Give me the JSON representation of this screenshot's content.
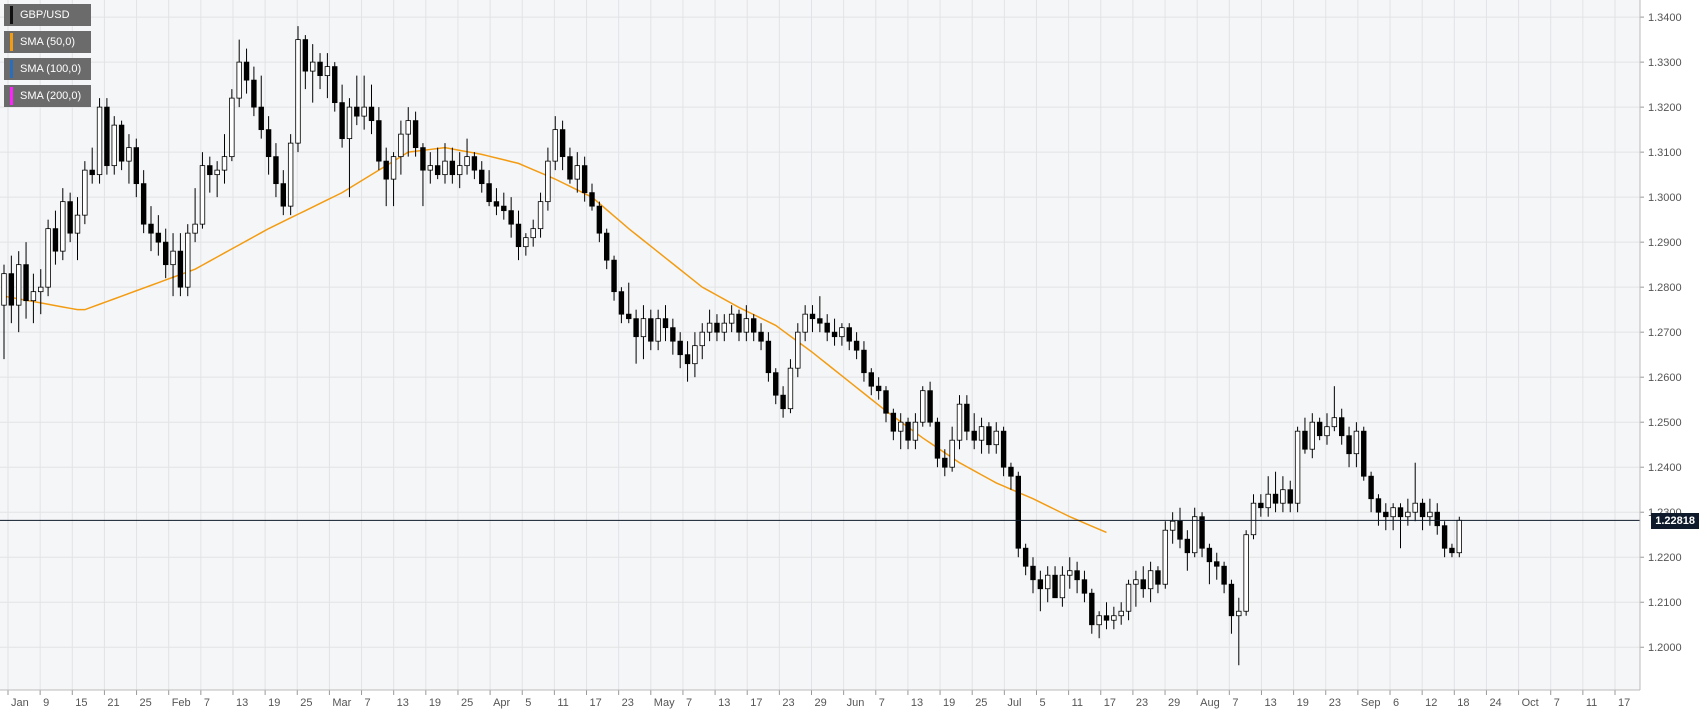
{
  "colors": {
    "background": "#f5f6f7",
    "grid": "#e1e3e6",
    "axis_text": "#555555",
    "candle_up_fill": "#ffffff",
    "candle_down_fill": "#000000",
    "candle_outline": "#000000",
    "price_line": "#0e1a2b"
  },
  "legend": [
    {
      "label": "GBP/USD",
      "color": "#111111"
    },
    {
      "label": "SMA (50,0)",
      "color": "#f39c12"
    },
    {
      "label": "SMA (100,0)",
      "color": "#2a6ebb"
    },
    {
      "label": "SMA (200,0)",
      "color": "#ff22ff"
    }
  ],
  "current_price_label": "1.22818",
  "chart_data": {
    "type": "candlestick",
    "title": "",
    "xlabel": "",
    "ylabel": "",
    "ylim": [
      1.1905,
      1.3438
    ],
    "y_ticks": [
      "1.2000",
      "1.2100",
      "1.2200",
      "1.2300",
      "1.2400",
      "1.2500",
      "1.2600",
      "1.2700",
      "1.2800",
      "1.2900",
      "1.3000",
      "1.3100",
      "1.3200",
      "1.3300",
      "1.3400"
    ],
    "x_tick_labels": [
      "Jan",
      "9",
      "15",
      "21",
      "25",
      "Feb",
      "7",
      "13",
      "19",
      "25",
      "Mar",
      "7",
      "13",
      "19",
      "25",
      "Apr",
      "5",
      "11",
      "17",
      "23",
      "May",
      "7",
      "13",
      "17",
      "23",
      "29",
      "Jun",
      "7",
      "13",
      "19",
      "25",
      "Jul",
      "5",
      "11",
      "17",
      "23",
      "29",
      "Aug",
      "7",
      "13",
      "19",
      "23",
      "Sep",
      "6",
      "12",
      "18",
      "24",
      "Oct",
      "7",
      "11",
      "17"
    ],
    "current_price": 1.22818,
    "grid": true,
    "legend_position": "top-left",
    "candles": [
      [
        1.276,
        1.285,
        1.264,
        1.283
      ],
      [
        1.283,
        1.287,
        1.272,
        1.276
      ],
      [
        1.276,
        1.288,
        1.27,
        1.285
      ],
      [
        1.285,
        1.29,
        1.273,
        1.277
      ],
      [
        1.277,
        1.283,
        1.272,
        1.279
      ],
      [
        1.279,
        1.284,
        1.274,
        1.28
      ],
      [
        1.28,
        1.295,
        1.278,
        1.293
      ],
      [
        1.293,
        1.297,
        1.285,
        1.288
      ],
      [
        1.288,
        1.302,
        1.286,
        1.299
      ],
      [
        1.299,
        1.301,
        1.29,
        1.292
      ],
      [
        1.292,
        1.3,
        1.286,
        1.296
      ],
      [
        1.296,
        1.308,
        1.294,
        1.306
      ],
      [
        1.306,
        1.311,
        1.303,
        1.305
      ],
      [
        1.305,
        1.322,
        1.303,
        1.32
      ],
      [
        1.32,
        1.322,
        1.305,
        1.307
      ],
      [
        1.307,
        1.318,
        1.305,
        1.316
      ],
      [
        1.316,
        1.317,
        1.306,
        1.308
      ],
      [
        1.308,
        1.314,
        1.303,
        1.311
      ],
      [
        1.311,
        1.313,
        1.3,
        1.303
      ],
      [
        1.303,
        1.306,
        1.292,
        1.294
      ],
      [
        1.294,
        1.298,
        1.288,
        1.292
      ],
      [
        1.292,
        1.296,
        1.287,
        1.29
      ],
      [
        1.29,
        1.293,
        1.282,
        1.285
      ],
      [
        1.285,
        1.292,
        1.278,
        1.288
      ],
      [
        1.288,
        1.292,
        1.278,
        1.28
      ],
      [
        1.28,
        1.294,
        1.278,
        1.292
      ],
      [
        1.292,
        1.302,
        1.29,
        1.294
      ],
      [
        1.294,
        1.31,
        1.293,
        1.307
      ],
      [
        1.307,
        1.309,
        1.301,
        1.305
      ],
      [
        1.305,
        1.308,
        1.3,
        1.306
      ],
      [
        1.306,
        1.314,
        1.303,
        1.309
      ],
      [
        1.309,
        1.324,
        1.308,
        1.322
      ],
      [
        1.322,
        1.335,
        1.32,
        1.33
      ],
      [
        1.33,
        1.333,
        1.323,
        1.326
      ],
      [
        1.326,
        1.329,
        1.318,
        1.32
      ],
      [
        1.32,
        1.327,
        1.313,
        1.315
      ],
      [
        1.315,
        1.318,
        1.305,
        1.309
      ],
      [
        1.309,
        1.312,
        1.3,
        1.303
      ],
      [
        1.303,
        1.306,
        1.296,
        1.298
      ],
      [
        1.298,
        1.314,
        1.296,
        1.312
      ],
      [
        1.312,
        1.338,
        1.31,
        1.335
      ],
      [
        1.335,
        1.336,
        1.324,
        1.328
      ],
      [
        1.328,
        1.334,
        1.321,
        1.33
      ],
      [
        1.33,
        1.332,
        1.324,
        1.327
      ],
      [
        1.327,
        1.332,
        1.322,
        1.329
      ],
      [
        1.329,
        1.33,
        1.319,
        1.321
      ],
      [
        1.321,
        1.325,
        1.311,
        1.313
      ],
      [
        1.313,
        1.322,
        1.3,
        1.32
      ],
      [
        1.32,
        1.327,
        1.316,
        1.318
      ],
      [
        1.318,
        1.327,
        1.315,
        1.32
      ],
      [
        1.32,
        1.325,
        1.314,
        1.317
      ],
      [
        1.317,
        1.32,
        1.306,
        1.308
      ],
      [
        1.308,
        1.311,
        1.298,
        1.304
      ],
      [
        1.304,
        1.31,
        1.298,
        1.309
      ],
      [
        1.309,
        1.317,
        1.305,
        1.314
      ],
      [
        1.314,
        1.32,
        1.309,
        1.317
      ],
      [
        1.317,
        1.319,
        1.309,
        1.311
      ],
      [
        1.311,
        1.312,
        1.298,
        1.306
      ],
      [
        1.306,
        1.31,
        1.303,
        1.307
      ],
      [
        1.307,
        1.311,
        1.304,
        1.305
      ],
      [
        1.305,
        1.312,
        1.303,
        1.308
      ],
      [
        1.308,
        1.311,
        1.303,
        1.305
      ],
      [
        1.305,
        1.31,
        1.302,
        1.307
      ],
      [
        1.307,
        1.313,
        1.305,
        1.309
      ],
      [
        1.309,
        1.31,
        1.304,
        1.306
      ],
      [
        1.306,
        1.308,
        1.301,
        1.303
      ],
      [
        1.303,
        1.306,
        1.298,
        1.299
      ],
      [
        1.299,
        1.302,
        1.296,
        1.298
      ],
      [
        1.298,
        1.301,
        1.295,
        1.297
      ],
      [
        1.297,
        1.3,
        1.291,
        1.294
      ],
      [
        1.294,
        1.297,
        1.286,
        1.289
      ],
      [
        1.289,
        1.292,
        1.287,
        1.291
      ],
      [
        1.291,
        1.295,
        1.289,
        1.293
      ],
      [
        1.293,
        1.301,
        1.291,
        1.299
      ],
      [
        1.299,
        1.311,
        1.297,
        1.308
      ],
      [
        1.308,
        1.318,
        1.306,
        1.315
      ],
      [
        1.315,
        1.317,
        1.306,
        1.309
      ],
      [
        1.309,
        1.311,
        1.303,
        1.304
      ],
      [
        1.304,
        1.31,
        1.301,
        1.307
      ],
      [
        1.307,
        1.309,
        1.299,
        1.301
      ],
      [
        1.301,
        1.303,
        1.297,
        1.298
      ],
      [
        1.298,
        1.299,
        1.29,
        1.292
      ],
      [
        1.292,
        1.293,
        1.284,
        1.286
      ],
      [
        1.286,
        1.287,
        1.277,
        1.279
      ],
      [
        1.279,
        1.28,
        1.272,
        1.274
      ],
      [
        1.274,
        1.281,
        1.272,
        1.273
      ],
      [
        1.273,
        1.275,
        1.263,
        1.269
      ],
      [
        1.269,
        1.276,
        1.264,
        1.273
      ],
      [
        1.273,
        1.275,
        1.266,
        1.268
      ],
      [
        1.268,
        1.275,
        1.266,
        1.273
      ],
      [
        1.273,
        1.276,
        1.268,
        1.271
      ],
      [
        1.271,
        1.273,
        1.265,
        1.268
      ],
      [
        1.268,
        1.27,
        1.262,
        1.265
      ],
      [
        1.265,
        1.268,
        1.259,
        1.263
      ],
      [
        1.263,
        1.27,
        1.26,
        1.267
      ],
      [
        1.267,
        1.272,
        1.264,
        1.27
      ],
      [
        1.27,
        1.275,
        1.268,
        1.272
      ],
      [
        1.272,
        1.274,
        1.268,
        1.27
      ],
      [
        1.27,
        1.274,
        1.268,
        1.272
      ],
      [
        1.272,
        1.276,
        1.27,
        1.274
      ],
      [
        1.274,
        1.275,
        1.268,
        1.27
      ],
      [
        1.27,
        1.276,
        1.268,
        1.273
      ],
      [
        1.273,
        1.274,
        1.268,
        1.27
      ],
      [
        1.27,
        1.272,
        1.266,
        1.268
      ],
      [
        1.268,
        1.27,
        1.259,
        1.261
      ],
      [
        1.261,
        1.262,
        1.254,
        1.256
      ],
      [
        1.256,
        1.258,
        1.251,
        1.253
      ],
      [
        1.253,
        1.264,
        1.252,
        1.262
      ],
      [
        1.262,
        1.272,
        1.26,
        1.27
      ],
      [
        1.27,
        1.276,
        1.268,
        1.274
      ],
      [
        1.274,
        1.276,
        1.27,
        1.273
      ],
      [
        1.273,
        1.278,
        1.27,
        1.272
      ],
      [
        1.272,
        1.274,
        1.268,
        1.27
      ],
      [
        1.27,
        1.273,
        1.267,
        1.269
      ],
      [
        1.269,
        1.272,
        1.267,
        1.271
      ],
      [
        1.271,
        1.272,
        1.266,
        1.268
      ],
      [
        1.268,
        1.27,
        1.264,
        1.266
      ],
      [
        1.266,
        1.268,
        1.259,
        1.261
      ],
      [
        1.261,
        1.262,
        1.256,
        1.258
      ],
      [
        1.258,
        1.26,
        1.255,
        1.257
      ],
      [
        1.257,
        1.258,
        1.25,
        1.252
      ],
      [
        1.252,
        1.253,
        1.246,
        1.248
      ],
      [
        1.248,
        1.252,
        1.244,
        1.25
      ],
      [
        1.25,
        1.251,
        1.244,
        1.246
      ],
      [
        1.246,
        1.252,
        1.244,
        1.25
      ],
      [
        1.25,
        1.258,
        1.249,
        1.257
      ],
      [
        1.257,
        1.259,
        1.249,
        1.25
      ],
      [
        1.25,
        1.251,
        1.24,
        1.242
      ],
      [
        1.242,
        1.244,
        1.238,
        1.24
      ],
      [
        1.24,
        1.249,
        1.239,
        1.246
      ],
      [
        1.246,
        1.256,
        1.244,
        1.254
      ],
      [
        1.254,
        1.256,
        1.246,
        1.248
      ],
      [
        1.248,
        1.252,
        1.244,
        1.246
      ],
      [
        1.246,
        1.251,
        1.243,
        1.249
      ],
      [
        1.249,
        1.25,
        1.243,
        1.245
      ],
      [
        1.245,
        1.25,
        1.243,
        1.248
      ],
      [
        1.248,
        1.249,
        1.238,
        1.24
      ],
      [
        1.24,
        1.241,
        1.235,
        1.238
      ],
      [
        1.238,
        1.239,
        1.22,
        1.222
      ],
      [
        1.222,
        1.223,
        1.216,
        1.218
      ],
      [
        1.218,
        1.22,
        1.212,
        1.215
      ],
      [
        1.215,
        1.217,
        1.208,
        1.213
      ],
      [
        1.213,
        1.218,
        1.21,
        1.216
      ],
      [
        1.216,
        1.218,
        1.211,
        1.211
      ],
      [
        1.211,
        1.218,
        1.209,
        1.216
      ],
      [
        1.216,
        1.22,
        1.213,
        1.217
      ],
      [
        1.217,
        1.219,
        1.212,
        1.215
      ],
      [
        1.215,
        1.217,
        1.21,
        1.212
      ],
      [
        1.212,
        1.213,
        1.203,
        1.205
      ],
      [
        1.205,
        1.208,
        1.202,
        1.207
      ],
      [
        1.207,
        1.21,
        1.204,
        1.206
      ],
      [
        1.206,
        1.209,
        1.204,
        1.207
      ],
      [
        1.207,
        1.21,
        1.205,
        1.208
      ],
      [
        1.208,
        1.215,
        1.206,
        1.214
      ],
      [
        1.214,
        1.217,
        1.209,
        1.215
      ],
      [
        1.215,
        1.218,
        1.211,
        1.213
      ],
      [
        1.213,
        1.219,
        1.21,
        1.217
      ],
      [
        1.217,
        1.218,
        1.212,
        1.214
      ],
      [
        1.214,
        1.228,
        1.213,
        1.226
      ],
      [
        1.226,
        1.23,
        1.223,
        1.228
      ],
      [
        1.228,
        1.231,
        1.222,
        1.224
      ],
      [
        1.224,
        1.226,
        1.217,
        1.221
      ],
      [
        1.221,
        1.231,
        1.22,
        1.229
      ],
      [
        1.229,
        1.23,
        1.22,
        1.222
      ],
      [
        1.222,
        1.223,
        1.214,
        1.219
      ],
      [
        1.219,
        1.221,
        1.215,
        1.218
      ],
      [
        1.218,
        1.219,
        1.212,
        1.214
      ],
      [
        1.214,
        1.215,
        1.203,
        1.207
      ],
      [
        1.207,
        1.211,
        1.196,
        1.208
      ],
      [
        1.208,
        1.226,
        1.207,
        1.225
      ],
      [
        1.225,
        1.234,
        1.224,
        1.232
      ],
      [
        1.232,
        1.234,
        1.229,
        1.231
      ],
      [
        1.231,
        1.238,
        1.229,
        1.234
      ],
      [
        1.234,
        1.239,
        1.23,
        1.232
      ],
      [
        1.232,
        1.238,
        1.23,
        1.235
      ],
      [
        1.235,
        1.237,
        1.23,
        1.232
      ],
      [
        1.232,
        1.249,
        1.23,
        1.248
      ],
      [
        1.248,
        1.251,
        1.243,
        1.244
      ],
      [
        1.244,
        1.252,
        1.242,
        1.25
      ],
      [
        1.25,
        1.251,
        1.246,
        1.247
      ],
      [
        1.247,
        1.252,
        1.245,
        1.249
      ],
      [
        1.249,
        1.258,
        1.248,
        1.251
      ],
      [
        1.251,
        1.253,
        1.245,
        1.247
      ],
      [
        1.247,
        1.249,
        1.24,
        1.243
      ],
      [
        1.243,
        1.25,
        1.24,
        1.248
      ],
      [
        1.248,
        1.249,
        1.237,
        1.238
      ],
      [
        1.238,
        1.239,
        1.23,
        1.233
      ],
      [
        1.233,
        1.234,
        1.227,
        1.23
      ],
      [
        1.23,
        1.232,
        1.226,
        1.229
      ],
      [
        1.229,
        1.232,
        1.226,
        1.231
      ],
      [
        1.231,
        1.232,
        1.222,
        1.229
      ],
      [
        1.229,
        1.233,
        1.227,
        1.23
      ],
      [
        1.23,
        1.241,
        1.228,
        1.232
      ],
      [
        1.232,
        1.233,
        1.226,
        1.229
      ],
      [
        1.229,
        1.233,
        1.227,
        1.23
      ],
      [
        1.23,
        1.232,
        1.225,
        1.227
      ],
      [
        1.227,
        1.228,
        1.22,
        1.222
      ],
      [
        1.222,
        1.223,
        1.22,
        1.221
      ],
      [
        1.221,
        1.229,
        1.22,
        1.2282
      ]
    ],
    "series": [
      {
        "name": "SMA (50,0)",
        "values": [
          1.278,
          1.2777,
          1.2774,
          1.2771,
          1.2768,
          1.2765,
          1.2762,
          1.2759,
          1.2756,
          1.2753,
          1.275,
          1.275,
          1.2756,
          1.2762,
          1.2768,
          1.2774,
          1.278,
          1.2786,
          1.2792,
          1.2798,
          1.2804,
          1.281,
          1.2816,
          1.2822,
          1.2828,
          1.2834,
          1.284,
          1.2849,
          1.2858,
          1.2867,
          1.2876,
          1.2885,
          1.2894,
          1.2903,
          1.2912,
          1.2921,
          1.293,
          1.2938,
          1.2946,
          1.2954,
          1.2962,
          1.297,
          1.2978,
          1.2986,
          1.2994,
          1.3002,
          1.301,
          1.302,
          1.303,
          1.304,
          1.305,
          1.306,
          1.307,
          1.308,
          1.309,
          1.31,
          1.3102,
          1.3104,
          1.3106,
          1.3108,
          1.311,
          1.3107,
          1.3104,
          1.3101,
          1.3098,
          1.3095,
          1.3091,
          1.3087,
          1.3083,
          1.3079,
          1.3075,
          1.3068,
          1.3061,
          1.3054,
          1.3047,
          1.304,
          1.3032,
          1.3024,
          1.3016,
          1.3008,
          1.3,
          1.2986,
          1.2972,
          1.2958,
          1.2944,
          1.293,
          1.2917,
          1.2904,
          1.2891,
          1.2878,
          1.2865,
          1.2852,
          1.2839,
          1.2826,
          1.2813,
          1.28,
          1.2791,
          1.2782,
          1.2773,
          1.2764,
          1.2755,
          1.2747,
          1.2739,
          1.2731,
          1.2723,
          1.2715,
          1.2703,
          1.2691,
          1.2679,
          1.2667,
          1.2655,
          1.2642,
          1.2629,
          1.2616,
          1.2603,
          1.259,
          1.2577,
          1.2564,
          1.2551,
          1.2538,
          1.2525,
          1.2513,
          1.2501,
          1.2489,
          1.2477,
          1.2465,
          1.2454,
          1.2443,
          1.2432,
          1.2421,
          1.241,
          1.2401,
          1.2392,
          1.2383,
          1.2374,
          1.2365,
          1.2358,
          1.2351,
          1.2344,
          1.2337,
          1.233,
          1.2322,
          1.2314,
          1.2306,
          1.2298,
          1.229,
          1.2283,
          1.2276,
          1.2269,
          1.2262,
          1.2255
        ]
      }
    ]
  }
}
